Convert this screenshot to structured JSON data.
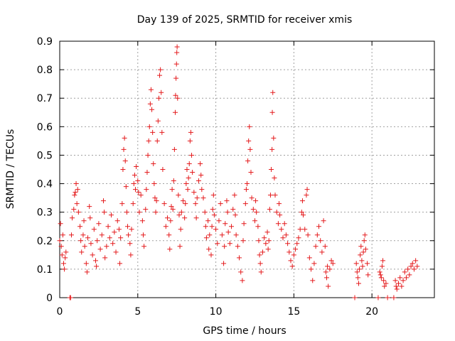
{
  "chart_data": {
    "type": "scatter",
    "title": "Day 139 of 2025, SRMTID for receiver xmis",
    "xlabel": "GPS time / hours",
    "ylabel": "SRMTID / TECUs",
    "xlim": [
      0,
      24
    ],
    "ylim": [
      0,
      0.9
    ],
    "xticks": [
      0,
      5,
      10,
      15,
      20
    ],
    "xtick_labels": [
      "0",
      "5",
      "10",
      "15",
      "20"
    ],
    "yticks": [
      0,
      0.1,
      0.2,
      0.3,
      0.4,
      0.5,
      0.6,
      0.7,
      0.8,
      0.9
    ],
    "ytick_labels": [
      "0",
      "0.1",
      "0.2",
      "0.3",
      "0.4",
      "0.5",
      "0.6",
      "0.7",
      "0.8",
      "0.9"
    ],
    "grid": true,
    "marker": "+",
    "marker_color": "#e41a1c",
    "series": [
      {
        "name": "SRMTID",
        "points": [
          [
            0.0,
            0.2
          ],
          [
            0.05,
            0.26
          ],
          [
            0.1,
            0.18
          ],
          [
            0.15,
            0.15
          ],
          [
            0.2,
            0.22
          ],
          [
            0.25,
            0.12
          ],
          [
            0.3,
            0.1
          ],
          [
            0.35,
            0.14
          ],
          [
            0.4,
            0.16
          ],
          [
            0.65,
            0.0
          ],
          [
            0.7,
            0.0
          ],
          [
            0.75,
            0.22
          ],
          [
            0.8,
            0.28
          ],
          [
            0.9,
            0.31
          ],
          [
            0.95,
            0.36
          ],
          [
            1.0,
            0.37
          ],
          [
            1.05,
            0.4
          ],
          [
            1.1,
            0.33
          ],
          [
            1.15,
            0.38
          ],
          [
            1.2,
            0.3
          ],
          [
            1.3,
            0.25
          ],
          [
            1.35,
            0.2
          ],
          [
            1.4,
            0.16
          ],
          [
            1.5,
            0.22
          ],
          [
            1.55,
            0.27
          ],
          [
            1.6,
            0.18
          ],
          [
            1.7,
            0.12
          ],
          [
            1.75,
            0.09
          ],
          [
            1.8,
            0.21
          ],
          [
            1.9,
            0.32
          ],
          [
            1.95,
            0.28
          ],
          [
            2.0,
            0.19
          ],
          [
            2.1,
            0.15
          ],
          [
            2.2,
            0.24
          ],
          [
            2.3,
            0.13
          ],
          [
            2.35,
            0.11
          ],
          [
            2.4,
            0.2
          ],
          [
            2.5,
            0.26
          ],
          [
            2.6,
            0.17
          ],
          [
            2.7,
            0.22
          ],
          [
            2.8,
            0.34
          ],
          [
            2.85,
            0.3
          ],
          [
            2.9,
            0.14
          ],
          [
            3.0,
            0.18
          ],
          [
            3.1,
            0.25
          ],
          [
            3.2,
            0.21
          ],
          [
            3.3,
            0.29
          ],
          [
            3.4,
            0.19
          ],
          [
            3.5,
            0.23
          ],
          [
            3.6,
            0.16
          ],
          [
            3.7,
            0.27
          ],
          [
            3.8,
            0.24
          ],
          [
            3.85,
            0.12
          ],
          [
            3.9,
            0.21
          ],
          [
            4.0,
            0.33
          ],
          [
            4.05,
            0.45
          ],
          [
            4.1,
            0.52
          ],
          [
            4.15,
            0.56
          ],
          [
            4.2,
            0.48
          ],
          [
            4.25,
            0.39
          ],
          [
            4.3,
            0.3
          ],
          [
            4.35,
            0.25
          ],
          [
            4.4,
            0.22
          ],
          [
            4.5,
            0.19
          ],
          [
            4.55,
            0.15
          ],
          [
            4.6,
            0.24
          ],
          [
            4.7,
            0.33
          ],
          [
            4.75,
            0.4
          ],
          [
            4.8,
            0.43
          ],
          [
            4.85,
            0.38
          ],
          [
            4.9,
            0.46
          ],
          [
            5.0,
            0.41
          ],
          [
            5.05,
            0.37
          ],
          [
            5.1,
            0.3
          ],
          [
            5.2,
            0.36
          ],
          [
            5.3,
            0.27
          ],
          [
            5.35,
            0.22
          ],
          [
            5.4,
            0.18
          ],
          [
            5.5,
            0.31
          ],
          [
            5.55,
            0.38
          ],
          [
            5.6,
            0.44
          ],
          [
            5.65,
            0.5
          ],
          [
            5.7,
            0.55
          ],
          [
            5.75,
            0.6
          ],
          [
            5.8,
            0.68
          ],
          [
            5.85,
            0.73
          ],
          [
            5.9,
            0.66
          ],
          [
            5.95,
            0.58
          ],
          [
            6.0,
            0.47
          ],
          [
            6.05,
            0.4
          ],
          [
            6.1,
            0.35
          ],
          [
            6.15,
            0.3
          ],
          [
            6.2,
            0.34
          ],
          [
            6.25,
            0.55
          ],
          [
            6.3,
            0.62
          ],
          [
            6.35,
            0.7
          ],
          [
            6.4,
            0.78
          ],
          [
            6.45,
            0.8
          ],
          [
            6.5,
            0.72
          ],
          [
            6.55,
            0.58
          ],
          [
            6.6,
            0.45
          ],
          [
            6.7,
            0.33
          ],
          [
            6.8,
            0.25
          ],
          [
            6.9,
            0.28
          ],
          [
            7.0,
            0.22
          ],
          [
            7.05,
            0.17
          ],
          [
            7.1,
            0.27
          ],
          [
            7.15,
            0.32
          ],
          [
            7.2,
            0.38
          ],
          [
            7.25,
            0.31
          ],
          [
            7.3,
            0.41
          ],
          [
            7.35,
            0.52
          ],
          [
            7.4,
            0.65
          ],
          [
            7.42,
            0.71
          ],
          [
            7.45,
            0.77
          ],
          [
            7.48,
            0.82
          ],
          [
            7.5,
            0.86
          ],
          [
            7.52,
            0.88
          ],
          [
            7.55,
            0.7
          ],
          [
            7.6,
            0.36
          ],
          [
            7.65,
            0.29
          ],
          [
            7.7,
            0.18
          ],
          [
            7.75,
            0.24
          ],
          [
            7.8,
            0.3
          ],
          [
            7.9,
            0.34
          ],
          [
            8.0,
            0.28
          ],
          [
            8.05,
            0.33
          ],
          [
            8.1,
            0.4
          ],
          [
            8.15,
            0.45
          ],
          [
            8.2,
            0.38
          ],
          [
            8.25,
            0.42
          ],
          [
            8.3,
            0.47
          ],
          [
            8.35,
            0.55
          ],
          [
            8.4,
            0.58
          ],
          [
            8.45,
            0.5
          ],
          [
            8.5,
            0.44
          ],
          [
            8.6,
            0.37
          ],
          [
            8.7,
            0.33
          ],
          [
            8.75,
            0.28
          ],
          [
            8.8,
            0.35
          ],
          [
            8.9,
            0.41
          ],
          [
            9.0,
            0.47
          ],
          [
            9.05,
            0.43
          ],
          [
            9.1,
            0.38
          ],
          [
            9.2,
            0.35
          ],
          [
            9.3,
            0.3
          ],
          [
            9.35,
            0.25
          ],
          [
            9.4,
            0.21
          ],
          [
            9.5,
            0.27
          ],
          [
            9.55,
            0.17
          ],
          [
            9.6,
            0.22
          ],
          [
            9.7,
            0.15
          ],
          [
            9.75,
            0.25
          ],
          [
            9.8,
            0.31
          ],
          [
            9.85,
            0.36
          ],
          [
            9.9,
            0.29
          ],
          [
            10.0,
            0.24
          ],
          [
            10.1,
            0.19
          ],
          [
            10.2,
            0.27
          ],
          [
            10.3,
            0.33
          ],
          [
            10.4,
            0.22
          ],
          [
            10.5,
            0.12
          ],
          [
            10.55,
            0.18
          ],
          [
            10.6,
            0.26
          ],
          [
            10.7,
            0.34
          ],
          [
            10.75,
            0.3
          ],
          [
            10.8,
            0.23
          ],
          [
            10.9,
            0.19
          ],
          [
            11.0,
            0.25
          ],
          [
            11.1,
            0.31
          ],
          [
            11.2,
            0.36
          ],
          [
            11.25,
            0.29
          ],
          [
            11.3,
            0.22
          ],
          [
            11.4,
            0.18
          ],
          [
            11.5,
            0.14
          ],
          [
            11.6,
            0.09
          ],
          [
            11.7,
            0.06
          ],
          [
            11.75,
            0.2
          ],
          [
            11.8,
            0.26
          ],
          [
            11.9,
            0.33
          ],
          [
            11.95,
            0.38
          ],
          [
            12.0,
            0.4
          ],
          [
            12.05,
            0.48
          ],
          [
            12.1,
            0.55
          ],
          [
            12.15,
            0.6
          ],
          [
            12.2,
            0.52
          ],
          [
            12.25,
            0.44
          ],
          [
            12.3,
            0.35
          ],
          [
            12.4,
            0.31
          ],
          [
            12.5,
            0.27
          ],
          [
            12.55,
            0.34
          ],
          [
            12.6,
            0.3
          ],
          [
            12.7,
            0.25
          ],
          [
            12.75,
            0.2
          ],
          [
            12.8,
            0.15
          ],
          [
            12.85,
            0.12
          ],
          [
            12.9,
            0.09
          ],
          [
            13.0,
            0.16
          ],
          [
            13.1,
            0.21
          ],
          [
            13.2,
            0.19
          ],
          [
            13.3,
            0.23
          ],
          [
            13.35,
            0.17
          ],
          [
            13.4,
            0.2
          ],
          [
            13.45,
            0.31
          ],
          [
            13.5,
            0.36
          ],
          [
            13.55,
            0.45
          ],
          [
            13.6,
            0.52
          ],
          [
            13.62,
            0.65
          ],
          [
            13.65,
            0.72
          ],
          [
            13.7,
            0.56
          ],
          [
            13.75,
            0.42
          ],
          [
            13.8,
            0.36
          ],
          [
            13.9,
            0.3
          ],
          [
            14.0,
            0.26
          ],
          [
            14.05,
            0.33
          ],
          [
            14.1,
            0.29
          ],
          [
            14.2,
            0.24
          ],
          [
            14.3,
            0.21
          ],
          [
            14.4,
            0.26
          ],
          [
            14.5,
            0.22
          ],
          [
            14.6,
            0.19
          ],
          [
            14.7,
            0.16
          ],
          [
            14.8,
            0.13
          ],
          [
            14.9,
            0.11
          ],
          [
            15.0,
            0.15
          ],
          [
            15.1,
            0.17
          ],
          [
            15.2,
            0.19
          ],
          [
            15.3,
            0.21
          ],
          [
            15.4,
            0.24
          ],
          [
            15.5,
            0.3
          ],
          [
            15.55,
            0.34
          ],
          [
            15.6,
            0.29
          ],
          [
            15.7,
            0.24
          ],
          [
            15.8,
            0.36
          ],
          [
            15.85,
            0.38
          ],
          [
            15.9,
            0.22
          ],
          [
            16.0,
            0.14
          ],
          [
            16.1,
            0.1
          ],
          [
            16.2,
            0.06
          ],
          [
            16.3,
            0.12
          ],
          [
            16.4,
            0.18
          ],
          [
            16.5,
            0.22
          ],
          [
            16.6,
            0.25
          ],
          [
            16.7,
            0.2
          ],
          [
            16.8,
            0.16
          ],
          [
            16.9,
            0.27
          ],
          [
            17.0,
            0.18
          ],
          [
            17.05,
            0.09
          ],
          [
            17.1,
            0.07
          ],
          [
            17.15,
            0.11
          ],
          [
            17.2,
            0.04
          ],
          [
            17.3,
            0.1
          ],
          [
            17.4,
            0.13
          ],
          [
            17.5,
            0.12
          ],
          [
            18.9,
            0.0
          ],
          [
            19.0,
            0.12
          ],
          [
            19.05,
            0.09
          ],
          [
            19.1,
            0.07
          ],
          [
            19.15,
            0.05
          ],
          [
            19.2,
            0.1
          ],
          [
            19.25,
            0.15
          ],
          [
            19.3,
            0.18
          ],
          [
            19.35,
            0.13
          ],
          [
            19.4,
            0.11
          ],
          [
            19.45,
            0.16
          ],
          [
            19.5,
            0.2
          ],
          [
            19.55,
            0.22
          ],
          [
            19.6,
            0.17
          ],
          [
            19.7,
            0.12
          ],
          [
            19.75,
            0.08
          ],
          [
            20.4,
            0.0
          ],
          [
            20.5,
            0.09
          ],
          [
            20.55,
            0.08
          ],
          [
            20.6,
            0.07
          ],
          [
            20.65,
            0.11
          ],
          [
            20.7,
            0.13
          ],
          [
            20.75,
            0.06
          ],
          [
            20.8,
            0.04
          ],
          [
            20.9,
            0.05
          ],
          [
            21.0,
            0.0
          ],
          [
            21.4,
            0.0
          ],
          [
            21.5,
            0.06
          ],
          [
            21.55,
            0.04
          ],
          [
            21.6,
            0.03
          ],
          [
            21.7,
            0.05
          ],
          [
            21.8,
            0.07
          ],
          [
            21.9,
            0.04
          ],
          [
            22.0,
            0.06
          ],
          [
            22.1,
            0.09
          ],
          [
            22.2,
            0.07
          ],
          [
            22.3,
            0.1
          ],
          [
            22.4,
            0.08
          ],
          [
            22.5,
            0.11
          ],
          [
            22.6,
            0.12
          ],
          [
            22.7,
            0.1
          ],
          [
            22.8,
            0.13
          ],
          [
            22.9,
            0.11
          ]
        ]
      }
    ]
  }
}
